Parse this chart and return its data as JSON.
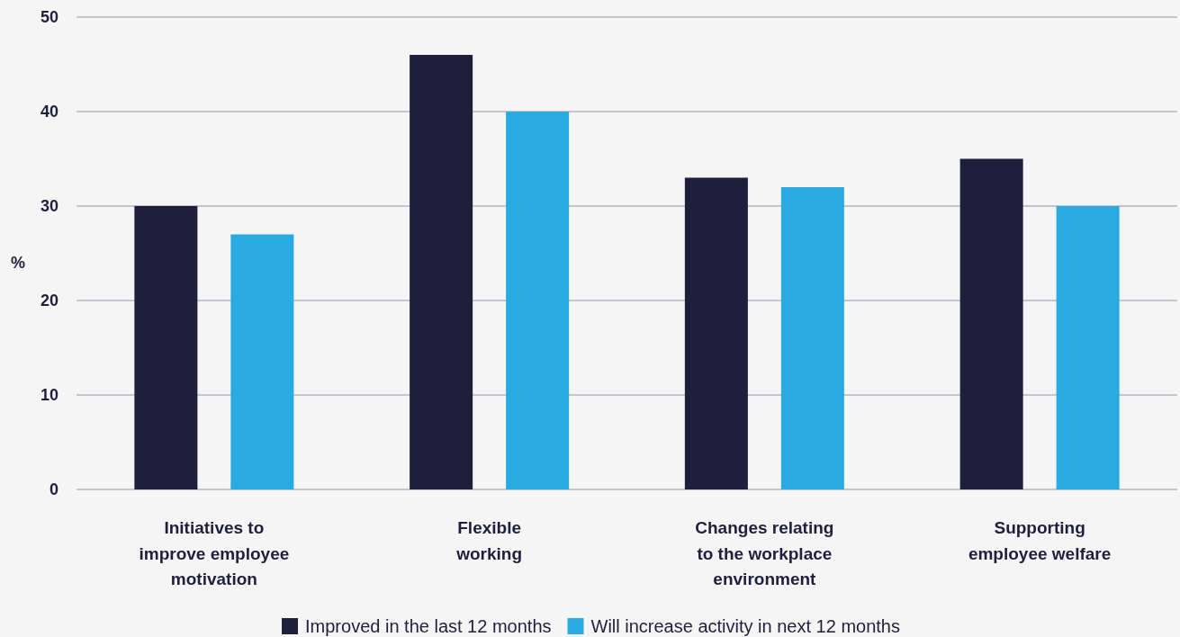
{
  "chart_data": {
    "type": "bar",
    "ylabel": "%",
    "categories": [
      "Initiatives to\nimprove employee\nmotivation",
      "Flexible\nworking",
      "Changes relating\nto the workplace\nenvironment",
      "Supporting\nemployee welfare"
    ],
    "series": [
      {
        "name": "Improved in the last 12 months",
        "color": "#1f1e3c",
        "values": [
          30,
          46,
          33,
          35
        ]
      },
      {
        "name": "Will increase activity in next 12 months",
        "color": "#29abe2",
        "values": [
          27,
          40,
          32,
          30
        ]
      }
    ],
    "ylim": [
      0,
      50
    ],
    "yticks": [
      0,
      10,
      20,
      30,
      40,
      50
    ],
    "grid": "y",
    "legend": "bottom"
  }
}
